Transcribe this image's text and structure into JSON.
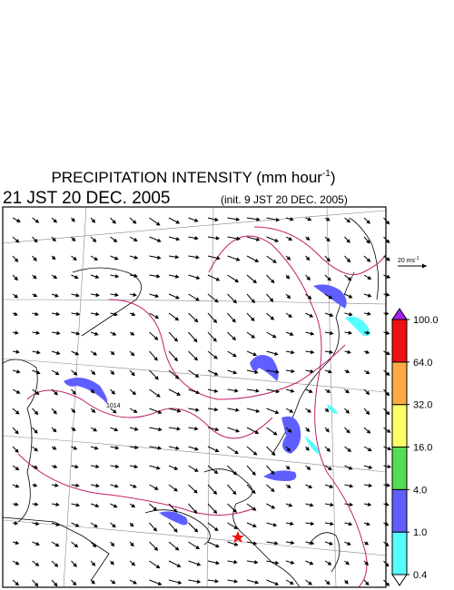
{
  "header": {
    "title_parts": [
      "PRECIPITATION INTENSITY (mm hour",
      "-1",
      ")"
    ],
    "valid_time": "21 JST 20 DEC. 2005",
    "init_time": "(init. 9 JST 20 DEC. 2005)"
  },
  "wind_reference": {
    "label_parts": [
      "20 ms",
      "-1"
    ]
  },
  "isobar_label": "1014",
  "colorbar": {
    "levels": [
      {
        "value": 0.4,
        "label": "0.4"
      },
      {
        "value": 1,
        "label": "1.0"
      },
      {
        "value": 4,
        "label": "4.0"
      },
      {
        "value": 16,
        "label": "16.0"
      },
      {
        "value": 32,
        "label": "32.0"
      },
      {
        "value": 64,
        "label": "64.0"
      },
      {
        "value": 100,
        "label": "100.0"
      }
    ],
    "colors": [
      "#ffffff",
      "#55ffff",
      "#5f5fff",
      "#55dd55",
      "#ffff66",
      "#ffaa44",
      "#ee1111",
      "#aa22ee"
    ]
  }
}
